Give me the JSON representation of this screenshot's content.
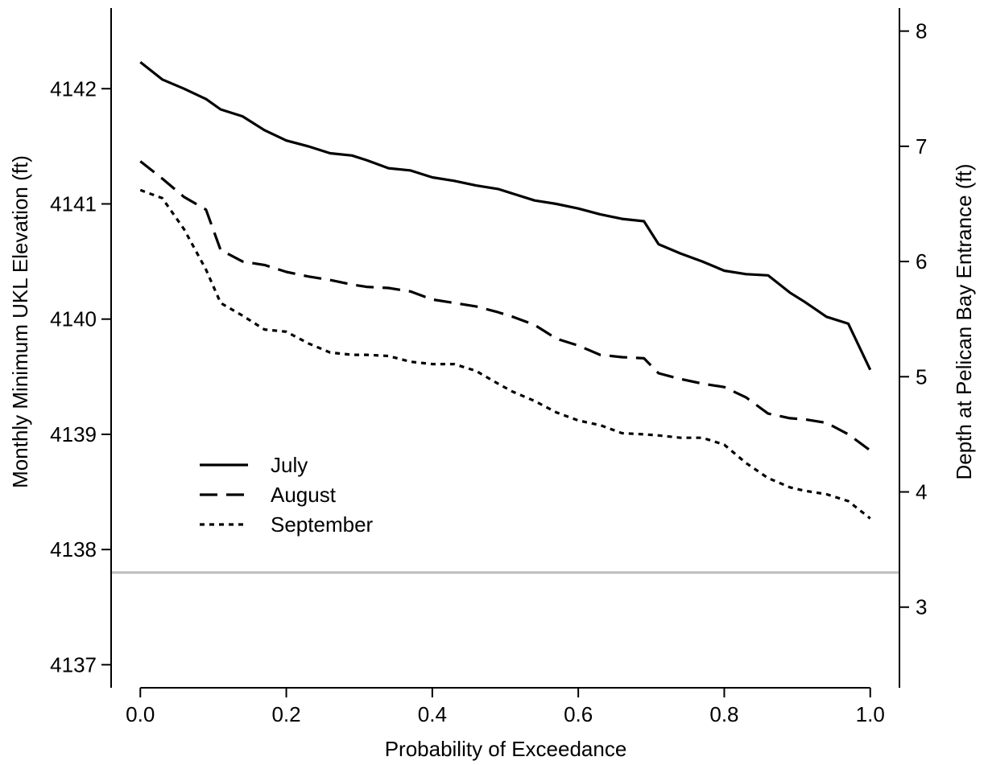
{
  "chart_data": {
    "type": "line",
    "xlabel": "Probability of Exceedance",
    "ylabel": "Monthly Minimum UKL Elevation (ft)",
    "y2label": "Depth at Pelican Bay Entrance (ft)",
    "xlim": [
      -0.04,
      1.04
    ],
    "ylim": [
      4136.8,
      4142.7
    ],
    "y2lim": [
      2.3,
      8.2
    ],
    "xticks": [
      0.0,
      0.2,
      0.4,
      0.6,
      0.8,
      1.0
    ],
    "xtick_labels": [
      "0.0",
      "0.2",
      "0.4",
      "0.6",
      "0.8",
      "1.0"
    ],
    "yticks": [
      4137,
      4138,
      4139,
      4140,
      4141,
      4142
    ],
    "ytick_labels": [
      "4137",
      "4138",
      "4139",
      "4140",
      "4141",
      "4142"
    ],
    "y2ticks": [
      3,
      4,
      5,
      6,
      7,
      8
    ],
    "y2tick_labels": [
      "3",
      "4",
      "5",
      "6",
      "7",
      "8"
    ],
    "grid": false,
    "legend_position": "lower-left",
    "reference_line": {
      "y": 4137.8,
      "color": "#bdbdbd"
    },
    "series": [
      {
        "name": "July",
        "style": "solid",
        "x": [
          0.0,
          0.03,
          0.06,
          0.09,
          0.11,
          0.14,
          0.17,
          0.2,
          0.23,
          0.26,
          0.29,
          0.31,
          0.34,
          0.37,
          0.4,
          0.43,
          0.46,
          0.49,
          0.51,
          0.54,
          0.57,
          0.6,
          0.63,
          0.66,
          0.69,
          0.71,
          0.74,
          0.77,
          0.8,
          0.83,
          0.86,
          0.89,
          0.91,
          0.94,
          0.97,
          1.0
        ],
        "values": [
          4142.23,
          4142.08,
          4142.0,
          4141.91,
          4141.82,
          4141.76,
          4141.64,
          4141.55,
          4141.5,
          4141.44,
          4141.42,
          4141.38,
          4141.31,
          4141.29,
          4141.23,
          4141.2,
          4141.16,
          4141.13,
          4141.09,
          4141.03,
          4141.0,
          4140.96,
          4140.91,
          4140.87,
          4140.85,
          4140.65,
          4140.57,
          4140.5,
          4140.42,
          4140.39,
          4140.38,
          4140.23,
          4140.15,
          4140.02,
          4139.96,
          4139.56
        ]
      },
      {
        "name": "August",
        "style": "dashed",
        "x": [
          0.0,
          0.03,
          0.06,
          0.09,
          0.11,
          0.14,
          0.17,
          0.2,
          0.23,
          0.26,
          0.29,
          0.31,
          0.34,
          0.37,
          0.4,
          0.43,
          0.46,
          0.49,
          0.51,
          0.54,
          0.57,
          0.6,
          0.63,
          0.66,
          0.69,
          0.71,
          0.74,
          0.77,
          0.8,
          0.83,
          0.86,
          0.89,
          0.91,
          0.94,
          0.97,
          1.0
        ],
        "values": [
          4141.37,
          4141.22,
          4141.06,
          4140.95,
          4140.6,
          4140.5,
          4140.47,
          4140.41,
          4140.37,
          4140.34,
          4140.3,
          4140.28,
          4140.27,
          4140.24,
          4140.17,
          4140.14,
          4140.11,
          4140.06,
          4140.02,
          4139.95,
          4139.83,
          4139.77,
          4139.69,
          4139.67,
          4139.66,
          4139.53,
          4139.48,
          4139.44,
          4139.41,
          4139.32,
          4139.18,
          4139.14,
          4139.13,
          4139.1,
          4139.0,
          4138.86
        ]
      },
      {
        "name": "September",
        "style": "dotted",
        "x": [
          0.0,
          0.03,
          0.06,
          0.09,
          0.11,
          0.14,
          0.17,
          0.2,
          0.23,
          0.26,
          0.29,
          0.31,
          0.34,
          0.37,
          0.4,
          0.43,
          0.46,
          0.49,
          0.51,
          0.54,
          0.57,
          0.6,
          0.63,
          0.66,
          0.69,
          0.71,
          0.74,
          0.77,
          0.8,
          0.83,
          0.86,
          0.89,
          0.91,
          0.94,
          0.97,
          1.0
        ],
        "values": [
          4141.12,
          4141.05,
          4140.78,
          4140.43,
          4140.14,
          4140.03,
          4139.91,
          4139.89,
          4139.79,
          4139.71,
          4139.69,
          4139.69,
          4139.68,
          4139.63,
          4139.61,
          4139.61,
          4139.55,
          4139.44,
          4139.37,
          4139.29,
          4139.19,
          4139.12,
          4139.08,
          4139.01,
          4139.0,
          4138.99,
          4138.97,
          4138.97,
          4138.91,
          4138.75,
          4138.62,
          4138.54,
          4138.51,
          4138.48,
          4138.42,
          4138.27
        ]
      }
    ]
  }
}
